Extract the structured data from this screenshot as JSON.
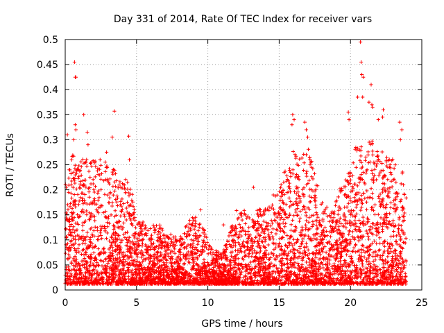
{
  "chart_data": {
    "type": "scatter",
    "title": "Day 331 of 2014, Rate Of TEC Index for receiver vars",
    "xlabel": "GPS time / hours",
    "ylabel": "ROTI / TECUs",
    "xlim": [
      0,
      25
    ],
    "ylim": [
      0,
      0.5
    ],
    "xticks": [
      0,
      5,
      10,
      15,
      20,
      25
    ],
    "yticks": [
      0,
      0.05,
      0.1,
      0.15,
      0.2,
      0.25,
      0.3,
      0.35,
      0.4,
      0.45,
      0.5
    ],
    "xtick_labels": [
      "0",
      "5",
      "10",
      "15",
      "20",
      "25"
    ],
    "ytick_labels": [
      "0",
      "0.05",
      "0.1",
      "0.15",
      "0.2",
      "0.25",
      "0.3",
      "0.35",
      "0.4",
      "0.45",
      "0.5"
    ],
    "grid": true,
    "series_color": "#ff0000",
    "marker": "+",
    "series": [
      {
        "name": "ROTI",
        "x_range": [
          0,
          23.9
        ],
        "envelope": [
          [
            0.0,
            0.2
          ],
          [
            0.5,
            0.26
          ],
          [
            1.0,
            0.24
          ],
          [
            1.5,
            0.26
          ],
          [
            2.0,
            0.25
          ],
          [
            2.5,
            0.25
          ],
          [
            3.0,
            0.24
          ],
          [
            3.5,
            0.23
          ],
          [
            4.0,
            0.2
          ],
          [
            4.5,
            0.22
          ],
          [
            5.0,
            0.12
          ],
          [
            5.5,
            0.13
          ],
          [
            6.0,
            0.11
          ],
          [
            6.5,
            0.13
          ],
          [
            7.0,
            0.1
          ],
          [
            7.5,
            0.1
          ],
          [
            8.0,
            0.09
          ],
          [
            8.5,
            0.12
          ],
          [
            9.0,
            0.14
          ],
          [
            9.5,
            0.12
          ],
          [
            10.0,
            0.1
          ],
          [
            10.5,
            0.07
          ],
          [
            11.0,
            0.06
          ],
          [
            11.5,
            0.1
          ],
          [
            12.0,
            0.15
          ],
          [
            12.5,
            0.15
          ],
          [
            13.0,
            0.13
          ],
          [
            13.5,
            0.15
          ],
          [
            14.0,
            0.15
          ],
          [
            14.5,
            0.18
          ],
          [
            15.0,
            0.19
          ],
          [
            15.5,
            0.24
          ],
          [
            16.0,
            0.27
          ],
          [
            16.5,
            0.25
          ],
          [
            17.0,
            0.28
          ],
          [
            17.5,
            0.22
          ],
          [
            18.0,
            0.17
          ],
          [
            18.5,
            0.15
          ],
          [
            19.0,
            0.18
          ],
          [
            19.5,
            0.2
          ],
          [
            20.0,
            0.23
          ],
          [
            20.5,
            0.29
          ],
          [
            21.0,
            0.26
          ],
          [
            21.5,
            0.3
          ],
          [
            22.0,
            0.27
          ],
          [
            22.5,
            0.26
          ],
          [
            23.0,
            0.25
          ],
          [
            23.9,
            0.22
          ]
        ],
        "outliers": [
          [
            0.65,
            0.455
          ],
          [
            0.7,
            0.425
          ],
          [
            0.75,
            0.425
          ],
          [
            0.7,
            0.33
          ],
          [
            0.75,
            0.32
          ],
          [
            0.15,
            0.31
          ],
          [
            0.6,
            0.3
          ],
          [
            1.3,
            0.35
          ],
          [
            1.55,
            0.315
          ],
          [
            1.6,
            0.29
          ],
          [
            3.45,
            0.357
          ],
          [
            3.3,
            0.305
          ],
          [
            4.45,
            0.307
          ],
          [
            4.5,
            0.26
          ],
          [
            2.9,
            0.275
          ],
          [
            15.95,
            0.35
          ],
          [
            16.05,
            0.34
          ],
          [
            15.9,
            0.33
          ],
          [
            16.8,
            0.335
          ],
          [
            16.9,
            0.32
          ],
          [
            17.0,
            0.305
          ],
          [
            19.85,
            0.355
          ],
          [
            19.9,
            0.34
          ],
          [
            20.5,
            0.385
          ],
          [
            20.7,
            0.495
          ],
          [
            20.75,
            0.455
          ],
          [
            20.8,
            0.43
          ],
          [
            20.9,
            0.425
          ],
          [
            20.85,
            0.385
          ],
          [
            21.3,
            0.375
          ],
          [
            21.45,
            0.41
          ],
          [
            21.5,
            0.37
          ],
          [
            21.55,
            0.365
          ],
          [
            22.3,
            0.36
          ],
          [
            22.25,
            0.345
          ],
          [
            21.95,
            0.34
          ],
          [
            23.45,
            0.335
          ],
          [
            23.6,
            0.32
          ],
          [
            23.5,
            0.3
          ],
          [
            13.2,
            0.205
          ],
          [
            9.5,
            0.16
          ],
          [
            11.1,
            0.13
          ]
        ],
        "point_count": 5200
      }
    ]
  }
}
